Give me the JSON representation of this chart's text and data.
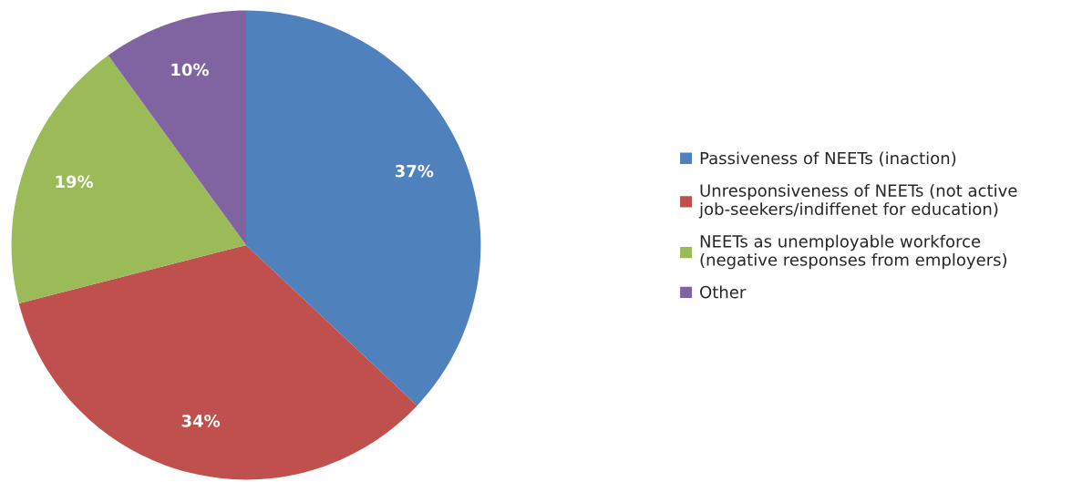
{
  "chart_data": {
    "type": "pie",
    "categories": [
      "Passiveness of NEETs (inaction)",
      "Unresponsiveness of NEETs (not active\njob-seekers/indiffenet for education)",
      "NEETs as unemployable workforce\n(negative responses from employers)",
      "Other"
    ],
    "values": [
      37,
      34,
      19,
      10
    ],
    "value_labels": [
      "37%",
      "34%",
      "19%",
      "10%"
    ],
    "colors": [
      "#4f81bd",
      "#c0504d",
      "#9bbb59",
      "#8064a2"
    ],
    "legend": "right"
  }
}
